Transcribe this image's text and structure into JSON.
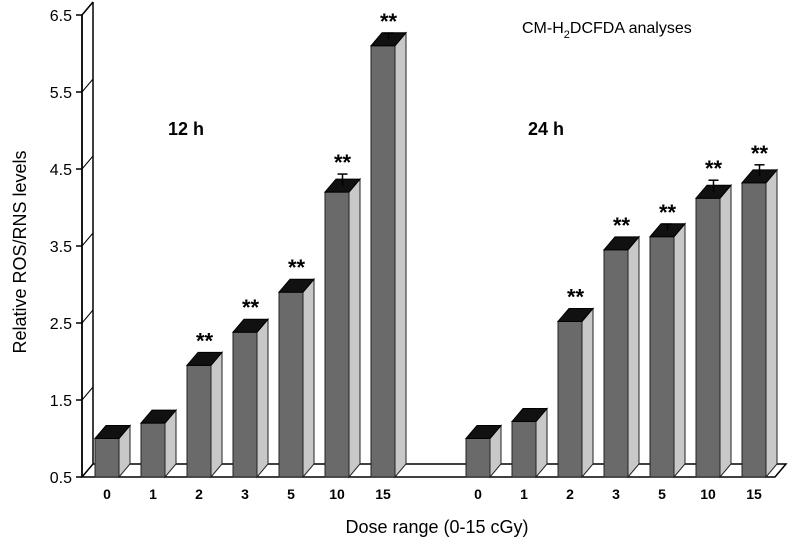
{
  "chart_data": {
    "type": "bar",
    "style": "3d-bars",
    "annotation": {
      "prefix": "CM-H",
      "subscript": "2",
      "suffix": "DCFDA analyses"
    },
    "xlabel": "Dose range (0-15 cGy)",
    "ylabel": "Relative ROS/RNS levels",
    "ylim": [
      0.5,
      6.5
    ],
    "yticks": [
      "6.5",
      "5.5",
      "4.5",
      "3.5",
      "2.5",
      "1.5",
      "0.5"
    ],
    "grid": false,
    "colors": {
      "bar_front": "#6a6a6a",
      "bar_side": "#c8c8c8",
      "bar_top": "#111111",
      "axis": "#000000"
    },
    "groups": [
      {
        "label": "12 h",
        "categories": [
          "0",
          "1",
          "2",
          "3",
          "5",
          "10",
          "15"
        ],
        "values": [
          1.0,
          1.2,
          1.95,
          2.38,
          2.9,
          4.2,
          6.1
        ],
        "errors": [
          0,
          0,
          0,
          0,
          0,
          0.15,
          0.08
        ],
        "significance": [
          "",
          "",
          "**",
          "**",
          "**",
          "**",
          "**"
        ]
      },
      {
        "label": "24 h",
        "categories": [
          "0",
          "1",
          "2",
          "3",
          "5",
          "10",
          "15"
        ],
        "values": [
          1.0,
          1.22,
          2.52,
          3.45,
          3.62,
          4.12,
          4.32
        ],
        "errors": [
          0,
          0,
          0,
          0,
          0.08,
          0.15,
          0.15
        ],
        "significance": [
          "",
          "",
          "**",
          "**",
          "**",
          "**",
          "**"
        ]
      }
    ]
  }
}
